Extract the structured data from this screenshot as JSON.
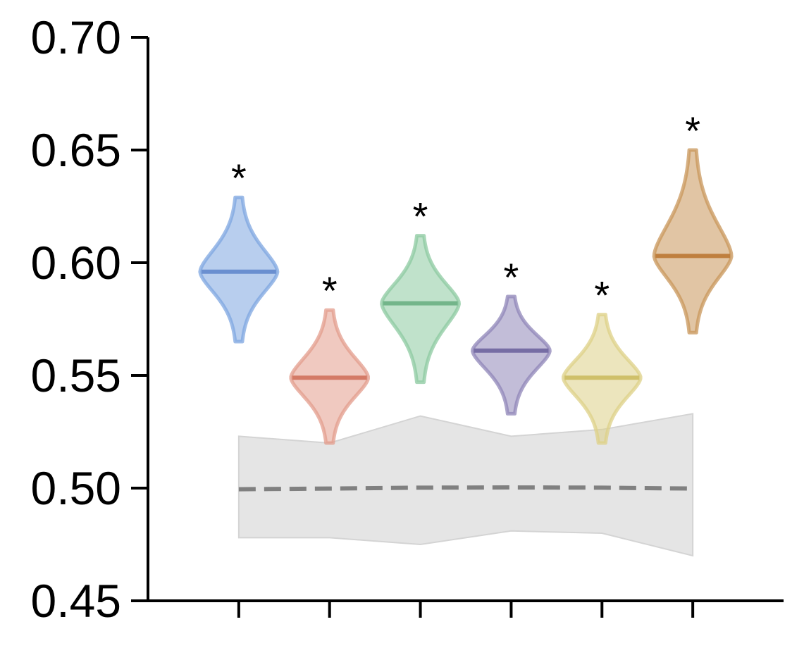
{
  "chart_data": {
    "type": "violin",
    "title": "",
    "xlabel": "",
    "ylabel": "",
    "ylim": [
      0.45,
      0.7
    ],
    "yticks": [
      "0.45",
      "0.50",
      "0.55",
      "0.60",
      "0.65",
      "0.70"
    ],
    "xticks": [
      1,
      2,
      3,
      4,
      5,
      6
    ],
    "xlim": [
      0,
      7
    ],
    "grid": false,
    "legend": "none",
    "violins": [
      {
        "x": 1,
        "median": 0.596,
        "min": 0.565,
        "max": 0.629,
        "color": "#7ea6e0",
        "line_color": "#6a8fd0",
        "annotation": "*"
      },
      {
        "x": 2,
        "median": 0.549,
        "min": 0.52,
        "max": 0.579,
        "color": "#e39c8c",
        "line_color": "#d47a66",
        "annotation": "*"
      },
      {
        "x": 3,
        "median": 0.582,
        "min": 0.547,
        "max": 0.612,
        "color": "#8ccaa0",
        "line_color": "#73b58a",
        "annotation": "*"
      },
      {
        "x": 4,
        "median": 0.561,
        "min": 0.533,
        "max": 0.585,
        "color": "#8f86b8",
        "line_color": "#766da4",
        "annotation": "*"
      },
      {
        "x": 5,
        "median": 0.549,
        "min": 0.52,
        "max": 0.577,
        "color": "#ddd087",
        "line_color": "#cfc06a",
        "annotation": "*"
      },
      {
        "x": 6,
        "median": 0.603,
        "min": 0.569,
        "max": 0.65,
        "color": "#c8965a",
        "line_color": "#bf7f3e",
        "annotation": "*"
      }
    ],
    "baseline": {
      "x": [
        1,
        2,
        3,
        4,
        5,
        6
      ],
      "mean": [
        0.4995,
        0.4998,
        0.5002,
        0.5003,
        0.5002,
        0.4998
      ],
      "lower": [
        0.478,
        0.478,
        0.475,
        0.481,
        0.48,
        0.47
      ],
      "upper": [
        0.523,
        0.52,
        0.532,
        0.523,
        0.526,
        0.533
      ],
      "band_color": "#e5e5e5",
      "line_color": "#808080"
    }
  }
}
